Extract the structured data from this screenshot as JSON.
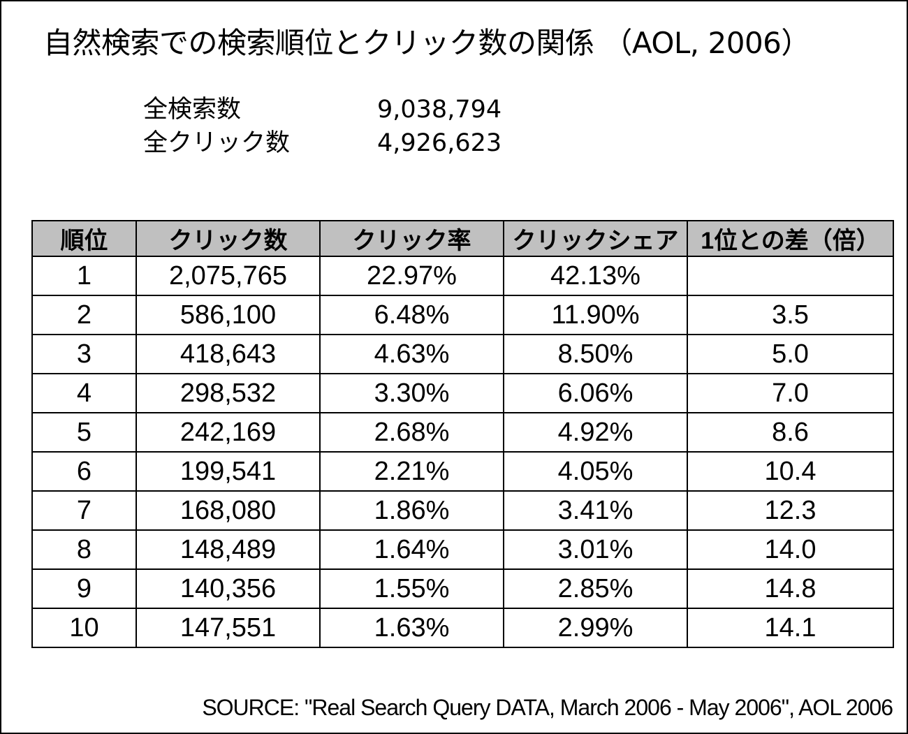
{
  "title": "自然検索での検索順位とクリック数の関係 （AOL, 2006）",
  "stats": [
    {
      "label": "全検索数",
      "value": "9,038,794"
    },
    {
      "label": "全クリック数",
      "value": "4,926,623"
    }
  ],
  "table": {
    "headers": [
      "順位",
      "クリック数",
      "クリック率",
      "クリックシェア",
      "1位との差（倍）"
    ],
    "rows": [
      [
        "1",
        "2,075,765",
        "22.97%",
        "42.13%",
        ""
      ],
      [
        "2",
        "586,100",
        "6.48%",
        "11.90%",
        "3.5"
      ],
      [
        "3",
        "418,643",
        "4.63%",
        "8.50%",
        "5.0"
      ],
      [
        "4",
        "298,532",
        "3.30%",
        "6.06%",
        "7.0"
      ],
      [
        "5",
        "242,169",
        "2.68%",
        "4.92%",
        "8.6"
      ],
      [
        "6",
        "199,541",
        "2.21%",
        "4.05%",
        "10.4"
      ],
      [
        "7",
        "168,080",
        "1.86%",
        "3.41%",
        "12.3"
      ],
      [
        "8",
        "148,489",
        "1.64%",
        "3.01%",
        "14.0"
      ],
      [
        "9",
        "140,356",
        "1.55%",
        "2.85%",
        "14.8"
      ],
      [
        "10",
        "147,551",
        "1.63%",
        "2.99%",
        "14.1"
      ]
    ]
  },
  "source": "SOURCE: \"Real Search Query DATA, March 2006 - May 2006\", AOL 2006",
  "colors": {
    "header_bg": "#c0c0c0",
    "border": "#000000",
    "background": "#ffffff"
  }
}
